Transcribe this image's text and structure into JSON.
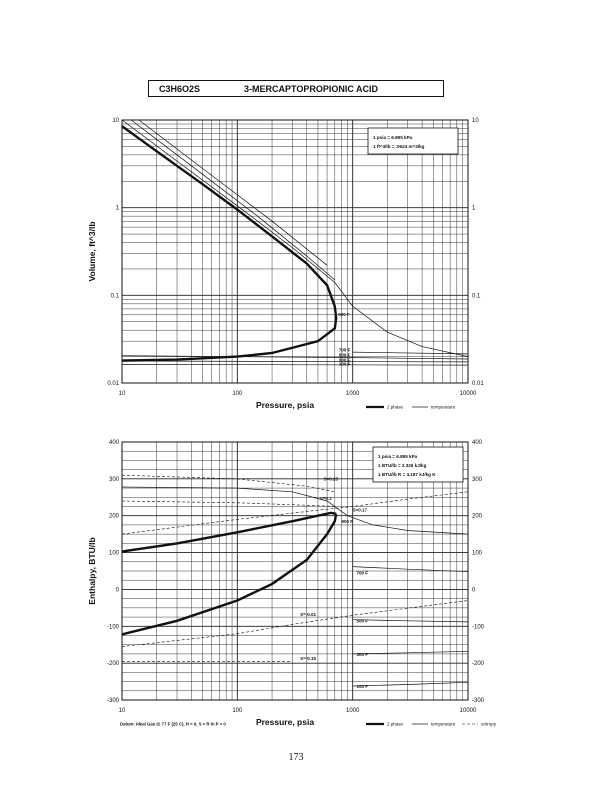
{
  "page": {
    "formula": "C3H6O2S",
    "name": "3-MERCAPTOPROPIONIC ACID",
    "page_number": "173"
  },
  "chart_data": [
    {
      "type": "line",
      "scale": "log-log",
      "ylabel": "Volume, ft^3/lb",
      "xlabel": "Pressure, psia",
      "xlim": [
        10,
        10000
      ],
      "ylim": [
        0.01,
        10
      ],
      "x_ticks": [
        "10",
        "100",
        "1000",
        "10000"
      ],
      "y_ticks": [
        "0.01",
        "0.1",
        "1",
        "10"
      ],
      "y_ticks_right": [
        "0.01",
        "0.1",
        "1",
        "10"
      ],
      "grid": true,
      "conversion_box": [
        "1 psia = 6.895 kPa",
        "1 ft^3/lb = .0624 m^3/kg"
      ],
      "legend": {
        "two_phase": "2 phase",
        "temperature": "temperature"
      },
      "temperature_labels": [
        "900 F",
        "700 F",
        "500 F",
        "300 F",
        "100 F"
      ],
      "series": [
        {
          "name": "2 phase",
          "kind": "two_phase",
          "points": [
            [
              10,
              8.5
            ],
            [
              20,
              4.4
            ],
            [
              50,
              1.85
            ],
            [
              100,
              0.95
            ],
            [
              200,
              0.47
            ],
            [
              400,
              0.23
            ],
            [
              600,
              0.13
            ],
            [
              700,
              0.075
            ],
            [
              720,
              0.055
            ],
            [
              700,
              0.042
            ],
            [
              500,
              0.03
            ],
            [
              200,
              0.022
            ],
            [
              100,
              0.02
            ],
            [
              30,
              0.0185
            ],
            [
              10,
              0.018
            ]
          ]
        },
        {
          "name": "900 F",
          "kind": "temperature",
          "points": [
            [
              10,
              10
            ],
            [
              30,
              3.4
            ],
            [
              100,
              1.05
            ],
            [
              300,
              0.35
            ],
            [
              700,
              0.14
            ],
            [
              1000,
              0.075
            ],
            [
              2000,
              0.038
            ],
            [
              4000,
              0.026
            ],
            [
              10000,
              0.02
            ]
          ]
        },
        {
          "name": "",
          "kind": "temperature",
          "points": [
            [
              12,
              10
            ],
            [
              40,
              3
            ],
            [
              150,
              0.8
            ],
            [
              400,
              0.28
            ],
            [
              700,
              0.15
            ]
          ]
        },
        {
          "name": "",
          "kind": "temperature",
          "points": [
            [
              14,
              10
            ],
            [
              50,
              2.8
            ],
            [
              200,
              0.7
            ],
            [
              600,
              0.22
            ]
          ]
        },
        {
          "name": "700 F",
          "kind": "temperature",
          "points": [
            [
              1000,
              0.0225
            ],
            [
              10000,
              0.0215
            ]
          ]
        },
        {
          "name": "500 F",
          "kind": "temperature",
          "points": [
            [
              10,
              0.0205
            ],
            [
              1000,
              0.0195
            ],
            [
              10000,
              0.0188
            ]
          ]
        },
        {
          "name": "300 F",
          "kind": "temperature",
          "points": [
            [
              10,
              0.0178
            ],
            [
              10000,
              0.0174
            ]
          ]
        },
        {
          "name": "100 F",
          "kind": "temperature",
          "points": [
            [
              10,
              0.0163
            ],
            [
              10000,
              0.016
            ]
          ]
        }
      ]
    },
    {
      "type": "line",
      "scale": "semilog-x",
      "ylabel": "Enthalpy, BTU/lb",
      "xlabel": "Pressure, psia",
      "xlim": [
        10,
        10000
      ],
      "ylim": [
        -300,
        400
      ],
      "x_ticks": [
        "10",
        "100",
        "1000",
        "10000"
      ],
      "y_ticks": [
        "-300",
        "-200",
        "-100",
        "0",
        "100",
        "200",
        "300",
        "400"
      ],
      "y_ticks_right": [
        "-300",
        "-200",
        "-100",
        "0",
        "100",
        "200",
        "300",
        "400"
      ],
      "grid": true,
      "conversion_box": [
        "1 psia = 6.895 kPa",
        "1 BTU/lb = 2.326 kJ/kg",
        "1 BTU/lb R = 4.187 kJ/kg K"
      ],
      "legend": {
        "two_phase": "2 phase",
        "temperature": "temperature",
        "entropy": "entropy"
      },
      "footnote": "Datum: Ideal Gas @ 77 F (25 C), H = 0, S = R ln P = 0",
      "temperature_labels": [
        "900 F",
        "700 F",
        "500 F",
        "300 F",
        "100 F"
      ],
      "entropy_labels": [
        "S=0.25",
        "S=0.2",
        "S=0.17",
        "S=-0.01",
        "S=-0.15"
      ],
      "series": [
        {
          "name": "2 phase vapor",
          "kind": "two_phase",
          "points": [
            [
              10,
              103
            ],
            [
              30,
              125
            ],
            [
              100,
              155
            ],
            [
              300,
              185
            ],
            [
              500,
              200
            ],
            [
              650,
              208
            ],
            [
              720,
              205
            ]
          ]
        },
        {
          "name": "2 phase liquid",
          "kind": "two_phase",
          "points": [
            [
              10,
              -122
            ],
            [
              30,
              -85
            ],
            [
              100,
              -30
            ],
            [
              200,
              15
            ],
            [
              400,
              80
            ],
            [
              600,
              150
            ],
            [
              700,
              185
            ],
            [
              720,
              205
            ]
          ]
        },
        {
          "name": "900 F",
          "kind": "temperature",
          "points": [
            [
              10,
              278
            ],
            [
              100,
              275
            ],
            [
              300,
              265
            ],
            [
              600,
              240
            ],
            [
              900,
              200
            ],
            [
              1500,
              175
            ],
            [
              3000,
              160
            ],
            [
              10000,
              150
            ]
          ]
        },
        {
          "name": "700 F",
          "kind": "temperature",
          "points": [
            [
              1000,
              62
            ],
            [
              3000,
              55
            ],
            [
              10000,
              48
            ]
          ]
        },
        {
          "name": "500 F",
          "kind": "temperature",
          "points": [
            [
              1000,
              -82
            ],
            [
              3000,
              -85
            ],
            [
              10000,
              -88
            ]
          ]
        },
        {
          "name": "300 F",
          "kind": "temperature",
          "points": [
            [
              1000,
              -175
            ],
            [
              3000,
              -172
            ],
            [
              10000,
              -168
            ]
          ]
        },
        {
          "name": "100 F",
          "kind": "temperature",
          "points": [
            [
              1000,
              -262
            ],
            [
              3000,
              -258
            ],
            [
              10000,
              -252
            ]
          ]
        },
        {
          "name": "S=0.25",
          "kind": "entropy",
          "points": [
            [
              10,
              310
            ],
            [
              100,
              300
            ],
            [
              400,
              280
            ],
            [
              700,
              265
            ]
          ]
        },
        {
          "name": "S=0.2",
          "kind": "entropy",
          "points": [
            [
              10,
              240
            ],
            [
              100,
              235
            ],
            [
              300,
              230
            ],
            [
              700,
              225
            ]
          ]
        },
        {
          "name": "S=0.17",
          "kind": "entropy",
          "points": [
            [
              10,
              150
            ],
            [
              100,
              190
            ],
            [
              500,
              215
            ],
            [
              1000,
              225
            ],
            [
              3000,
              245
            ],
            [
              10000,
              265
            ]
          ]
        },
        {
          "name": "S=-0.01",
          "kind": "entropy",
          "points": [
            [
              10,
              -155
            ],
            [
              100,
              -120
            ],
            [
              300,
              -95
            ],
            [
              1000,
              -70
            ],
            [
              10000,
              -30
            ]
          ]
        },
        {
          "name": "S=-0.15",
          "kind": "entropy",
          "points": [
            [
              10,
              -195
            ],
            [
              100,
              -195
            ],
            [
              300,
              -195
            ]
          ]
        }
      ]
    }
  ]
}
